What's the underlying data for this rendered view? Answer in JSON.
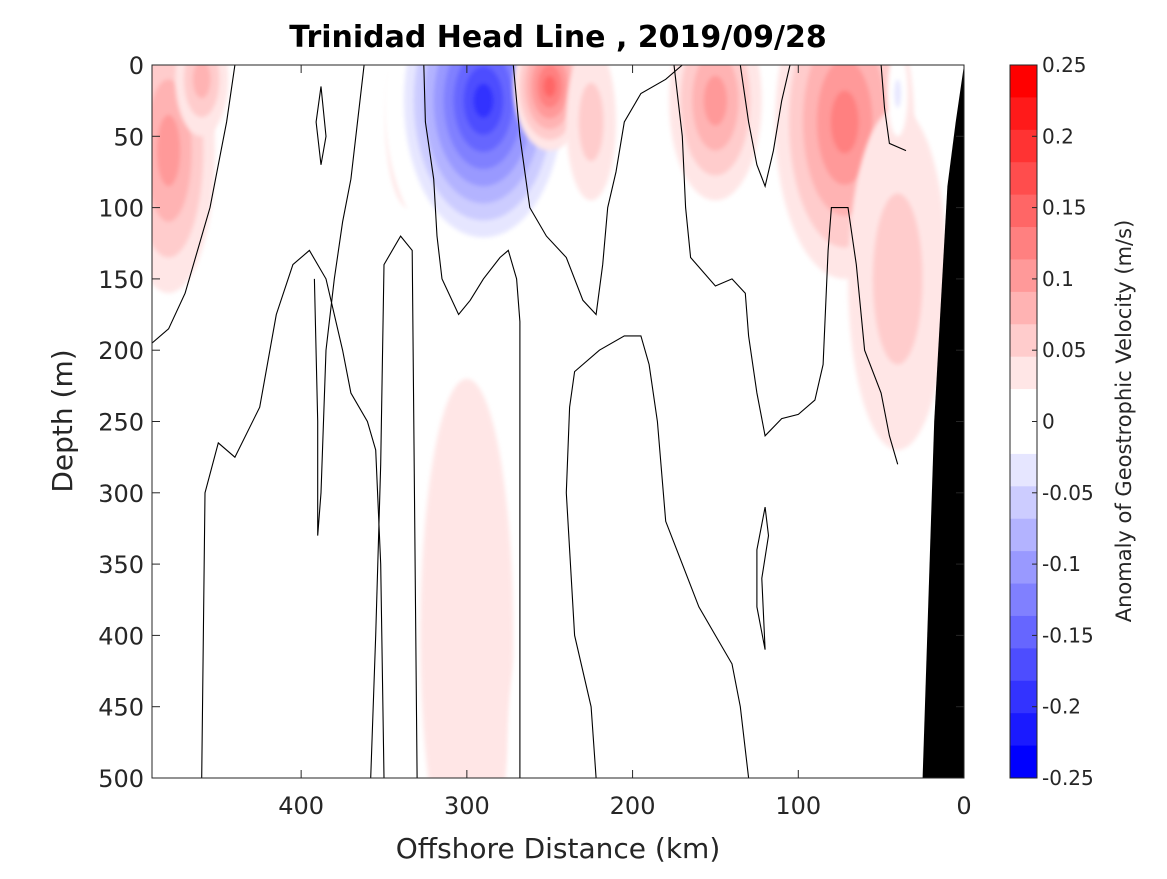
{
  "chart_data": {
    "type": "heatmap",
    "title": "Trinidad Head Line , 2019/09/28",
    "xlabel": "Offshore Distance (km)",
    "ylabel": "Depth (m)",
    "xlim": [
      490,
      0
    ],
    "ylim": [
      0,
      500
    ],
    "x_direction": "reversed",
    "y_direction": "reversed",
    "xticks": [
      400,
      300,
      200,
      100,
      0
    ],
    "yticks": [
      0,
      50,
      100,
      150,
      200,
      250,
      300,
      350,
      400,
      450,
      500
    ],
    "colorbar": {
      "label": "Anomaly of Geostrophic Velocity (m/s)",
      "ticks": [
        "0.25",
        "0.2",
        "0.15",
        "0.1",
        "0.05",
        "0",
        "-0.05",
        "-0.1",
        "-0.15",
        "-0.2",
        "-0.25"
      ],
      "tick_values": [
        0.25,
        0.2,
        0.15,
        0.1,
        0.05,
        0,
        -0.05,
        -0.1,
        -0.15,
        -0.2,
        -0.25
      ],
      "levels": [
        0.25,
        0.225,
        0.2,
        0.175,
        0.15,
        0.125,
        0.1,
        0.075,
        0.05,
        0.025,
        0,
        -0.025,
        -0.05,
        -0.075,
        -0.1,
        -0.125,
        -0.15,
        -0.175,
        -0.2,
        -0.225,
        -0.25
      ],
      "colors": [
        "#ff0000",
        "#ff1a1a",
        "#ff3333",
        "#ff4d4d",
        "#ff6666",
        "#ff8080",
        "#ff9999",
        "#ffb3b3",
        "#ffcccc",
        "#ffe6e6",
        "#ffffff",
        "#ffffff",
        "#e6e6ff",
        "#ccccff",
        "#b3b3ff",
        "#9999ff",
        "#8080ff",
        "#6666ff",
        "#4d4dff",
        "#3333ff",
        "#1a1aff",
        "#0000ff"
      ]
    },
    "features": [
      {
        "kind": "positive",
        "x": 480,
        "y": 60,
        "w": 28,
        "h": 100,
        "level": 0.1
      },
      {
        "kind": "positive",
        "x": 460,
        "y": 10,
        "w": 16,
        "h": 40,
        "level": 0.075
      },
      {
        "kind": "negative",
        "x": 405,
        "y": 60,
        "w": 24,
        "h": 70,
        "level": -0.05
      },
      {
        "kind": "negative",
        "x": 365,
        "y": 50,
        "w": 16,
        "h": 70,
        "level": -0.05
      },
      {
        "kind": "positive",
        "x": 335,
        "y": 40,
        "w": 14,
        "h": 60,
        "level": 0.05
      },
      {
        "kind": "negative",
        "x": 290,
        "y": 25,
        "w": 60,
        "h": 120,
        "level": -0.25
      },
      {
        "kind": "positive",
        "x": 250,
        "y": 15,
        "w": 22,
        "h": 45,
        "level": 0.15
      },
      {
        "kind": "positive",
        "x": 225,
        "y": 40,
        "w": 15,
        "h": 55,
        "level": 0.05
      },
      {
        "kind": "positive",
        "x": 150,
        "y": 25,
        "w": 28,
        "h": 70,
        "level": 0.1
      },
      {
        "kind": "positive",
        "x": 72,
        "y": 40,
        "w": 42,
        "h": 110,
        "level": 0.125
      },
      {
        "kind": "positive",
        "x": 40,
        "y": 150,
        "w": 30,
        "h": 120,
        "level": 0.05
      },
      {
        "kind": "negative",
        "x": 40,
        "y": 20,
        "w": 6,
        "h": 30,
        "level": -0.075
      },
      {
        "kind": "positive",
        "x": 300,
        "y": 400,
        "w": 28,
        "h": 180,
        "level": 0.025
      },
      {
        "kind": "negative",
        "x": 475,
        "y": 420,
        "w": 18,
        "h": 140,
        "level": -0.05
      },
      {
        "kind": "negative",
        "x": 265,
        "y": 470,
        "w": 10,
        "h": 60,
        "level": -0.05
      },
      {
        "kind": "negative",
        "x": 150,
        "y": 460,
        "w": 6,
        "h": 90,
        "level": -0.05
      },
      {
        "kind": "negative",
        "x": 90,
        "y": 440,
        "w": 14,
        "h": 110,
        "level": -0.05
      },
      {
        "kind": "negative",
        "x": 55,
        "y": 430,
        "w": 20,
        "h": 100,
        "level": -0.05
      }
    ],
    "zero_contours": [
      [
        [
          490,
          195
        ],
        [
          480,
          185
        ],
        [
          470,
          160
        ],
        [
          455,
          100
        ],
        [
          445,
          40
        ],
        [
          440,
          0
        ]
      ],
      [
        [
          460,
          500
        ],
        [
          458,
          300
        ],
        [
          450,
          265
        ],
        [
          440,
          275
        ],
        [
          425,
          240
        ],
        [
          415,
          175
        ],
        [
          405,
          140
        ],
        [
          395,
          130
        ],
        [
          385,
          150
        ],
        [
          375,
          200
        ],
        [
          370,
          230
        ],
        [
          360,
          250
        ],
        [
          355,
          270
        ],
        [
          352,
          350
        ],
        [
          350,
          500
        ]
      ],
      [
        [
          388,
          15
        ],
        [
          385,
          50
        ],
        [
          388,
          70
        ],
        [
          391,
          40
        ],
        [
          388,
          15
        ]
      ],
      [
        [
          392,
          150
        ],
        [
          390,
          250
        ],
        [
          390,
          330
        ],
        [
          388,
          300
        ],
        [
          385,
          200
        ],
        [
          380,
          150
        ],
        [
          375,
          110
        ],
        [
          370,
          80
        ],
        [
          366,
          40
        ],
        [
          362,
          0
        ]
      ],
      [
        [
          358,
          500
        ],
        [
          355,
          400
        ],
        [
          352,
          280
        ],
        [
          350,
          140
        ],
        [
          340,
          120
        ],
        [
          333,
          130
        ],
        [
          330,
          500
        ]
      ],
      [
        [
          326,
          0
        ],
        [
          325,
          40
        ],
        [
          320,
          80
        ],
        [
          318,
          120
        ],
        [
          315,
          150
        ],
        [
          305,
          175
        ],
        [
          298,
          165
        ],
        [
          290,
          150
        ],
        [
          280,
          135
        ],
        [
          275,
          130
        ],
        [
          270,
          150
        ],
        [
          268,
          180
        ],
        [
          268,
          500
        ]
      ],
      [
        [
          272,
          0
        ],
        [
          268,
          50
        ],
        [
          262,
          100
        ],
        [
          252,
          120
        ],
        [
          240,
          135
        ],
        [
          230,
          165
        ],
        [
          222,
          175
        ],
        [
          218,
          140
        ],
        [
          215,
          100
        ],
        [
          210,
          75
        ],
        [
          205,
          40
        ],
        [
          195,
          20
        ],
        [
          180,
          10
        ],
        [
          170,
          0
        ]
      ],
      [
        [
          222,
          500
        ],
        [
          225,
          450
        ],
        [
          235,
          400
        ],
        [
          240,
          300
        ],
        [
          238,
          240
        ],
        [
          235,
          215
        ],
        [
          220,
          200
        ],
        [
          205,
          190
        ],
        [
          195,
          190
        ],
        [
          190,
          210
        ],
        [
          185,
          250
        ],
        [
          180,
          320
        ],
        [
          170,
          350
        ],
        [
          160,
          380
        ],
        [
          150,
          400
        ],
        [
          140,
          420
        ],
        [
          135,
          450
        ],
        [
          130,
          500
        ]
      ],
      [
        [
          175,
          0
        ],
        [
          170,
          50
        ],
        [
          168,
          100
        ],
        [
          165,
          135
        ],
        [
          150,
          155
        ],
        [
          140,
          150
        ],
        [
          132,
          160
        ],
        [
          130,
          190
        ],
        [
          125,
          230
        ],
        [
          120,
          260
        ],
        [
          110,
          248
        ],
        [
          100,
          245
        ],
        [
          90,
          235
        ],
        [
          85,
          210
        ],
        [
          82,
          130
        ],
        [
          80,
          100
        ],
        [
          70,
          100
        ],
        [
          65,
          140
        ],
        [
          60,
          200
        ],
        [
          50,
          230
        ],
        [
          45,
          260
        ],
        [
          40,
          280
        ]
      ],
      [
        [
          135,
          0
        ],
        [
          130,
          40
        ],
        [
          125,
          70
        ],
        [
          120,
          85
        ],
        [
          115,
          60
        ],
        [
          110,
          25
        ],
        [
          105,
          0
        ]
      ],
      [
        [
          120,
          310
        ],
        [
          125,
          340
        ],
        [
          125,
          380
        ],
        [
          120,
          410
        ],
        [
          122,
          360
        ],
        [
          118,
          330
        ],
        [
          120,
          310
        ]
      ],
      [
        [
          50,
          0
        ],
        [
          48,
          30
        ],
        [
          45,
          55
        ],
        [
          35,
          60
        ]
      ]
    ],
    "bathymetry": [
      [
        0,
        0
      ],
      [
        5,
        40
      ],
      [
        10,
        85
      ],
      [
        18,
        250
      ],
      [
        25,
        500
      ],
      [
        0,
        500
      ]
    ]
  }
}
